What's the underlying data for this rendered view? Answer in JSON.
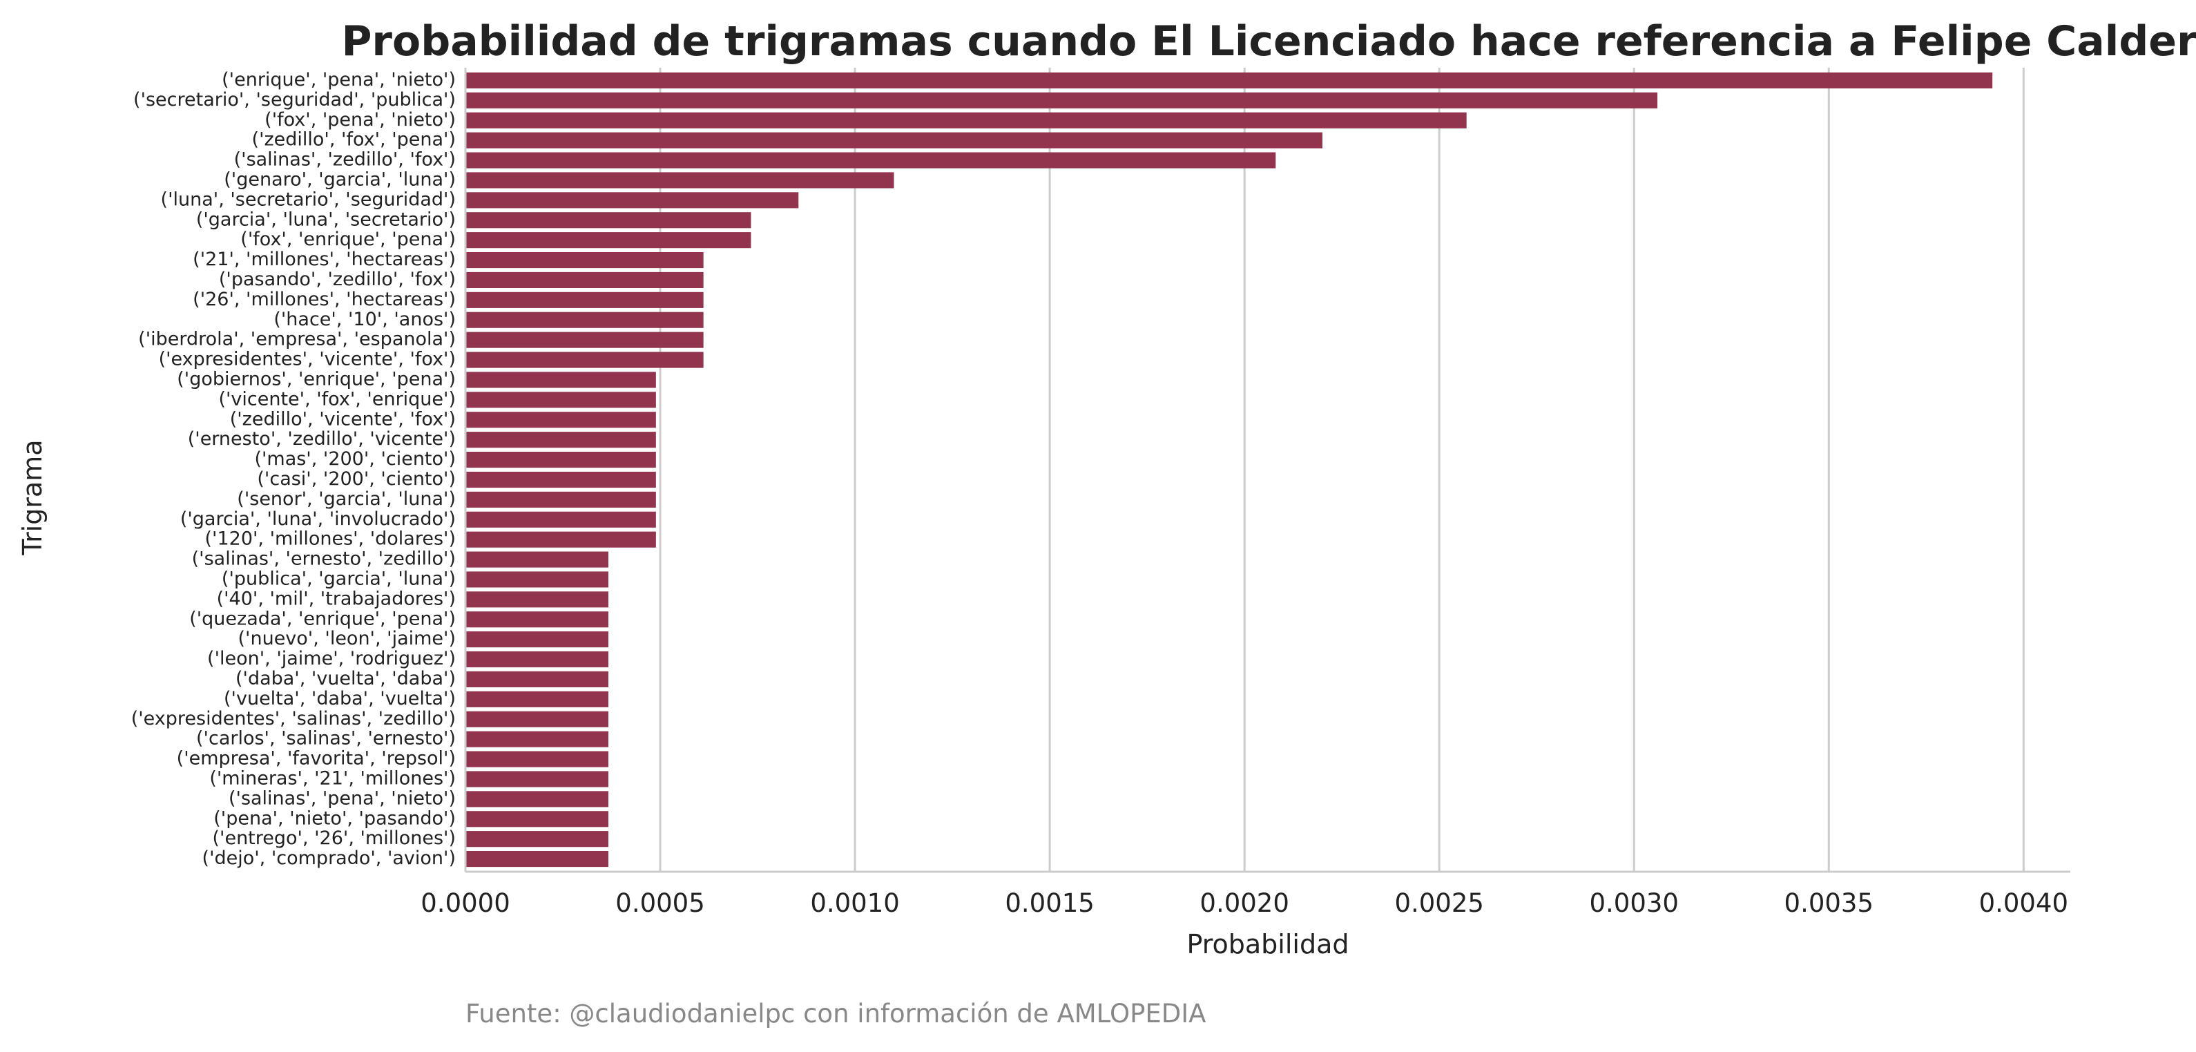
{
  "chart_data": {
    "type": "bar",
    "orientation": "horizontal",
    "title": "Probabilidad de trigramas cuando El Licenciado hace referencia a Felipe Calderón",
    "xlabel": "Probabilidad",
    "ylabel": "Trigrama",
    "source": "Fuente: @claudiodanielpc con información de AMLOPEDIA",
    "xlim": [
      0,
      0.00412
    ],
    "xticks": [
      "0.0000",
      "0.0005",
      "0.0010",
      "0.0015",
      "0.0020",
      "0.0025",
      "0.0030",
      "0.0035",
      "0.0040"
    ],
    "grid": true,
    "bar_color": "#93344f",
    "categories": [
      "('enrique', 'pena', 'nieto')",
      "('secretario', 'seguridad', 'publica')",
      "('fox', 'pena', 'nieto')",
      "('zedillo', 'fox', 'pena')",
      "('salinas', 'zedillo', 'fox')",
      "('genaro', 'garcia', 'luna')",
      "('luna', 'secretario', 'seguridad')",
      "('garcia', 'luna', 'secretario')",
      "('fox', 'enrique', 'pena')",
      "('21', 'millones', 'hectareas')",
      "('pasando', 'zedillo', 'fox')",
      "('26', 'millones', 'hectareas')",
      "('hace', '10', 'anos')",
      "('iberdrola', 'empresa', 'espanola')",
      "('expresidentes', 'vicente', 'fox')",
      "('gobiernos', 'enrique', 'pena')",
      "('vicente', 'fox', 'enrique')",
      "('zedillo', 'vicente', 'fox')",
      "('ernesto', 'zedillo', 'vicente')",
      "('mas', '200', 'ciento')",
      "('casi', '200', 'ciento')",
      "('senor', 'garcia', 'luna')",
      "('garcia', 'luna', 'involucrado')",
      "('120', 'millones', 'dolares')",
      "('salinas', 'ernesto', 'zedillo')",
      "('publica', 'garcia', 'luna')",
      "('40', 'mil', 'trabajadores')",
      "('quezada', 'enrique', 'pena')",
      "('nuevo', 'leon', 'jaime')",
      "('leon', 'jaime', 'rodriguez')",
      "('daba', 'vuelta', 'daba')",
      "('vuelta', 'daba', 'vuelta')",
      "('expresidentes', 'salinas', 'zedillo')",
      "('carlos', 'salinas', 'ernesto')",
      "('empresa', 'favorita', 'repsol')",
      "('mineras', '21', 'millones')",
      "('salinas', 'pena', 'nieto')",
      "('pena', 'nieto', 'pasando')",
      "('entrego', '26', 'millones')",
      "('dejo', 'comprado', 'avion')"
    ],
    "values": [
      0.00392,
      0.00306,
      0.00257,
      0.0022,
      0.00208,
      0.0011,
      0.000855,
      0.000733,
      0.000733,
      0.000611,
      0.000611,
      0.000611,
      0.000611,
      0.000611,
      0.000611,
      0.000489,
      0.000489,
      0.000489,
      0.000489,
      0.000489,
      0.000489,
      0.000489,
      0.000489,
      0.000489,
      0.000367,
      0.000367,
      0.000367,
      0.000367,
      0.000367,
      0.000367,
      0.000367,
      0.000367,
      0.000367,
      0.000367,
      0.000367,
      0.000367,
      0.000367,
      0.000367,
      0.000367,
      0.000367
    ]
  }
}
